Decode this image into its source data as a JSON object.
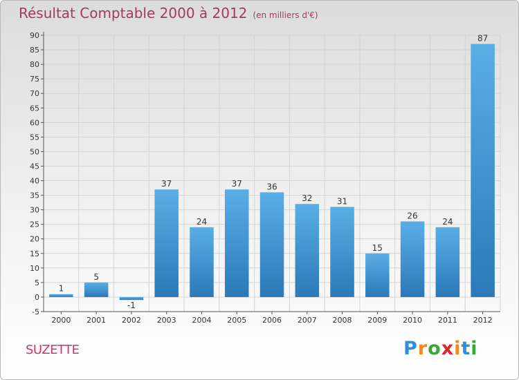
{
  "chart_data": {
    "type": "bar",
    "title": "Résultat Comptable 2000 à 2012",
    "subtitle": "(en milliers d'€)",
    "categories": [
      "2000",
      "2001",
      "2002",
      "2003",
      "2004",
      "2005",
      "2006",
      "2007",
      "2008",
      "2009",
      "2010",
      "2011",
      "2012"
    ],
    "values": [
      1,
      5,
      -1,
      37,
      24,
      37,
      36,
      32,
      31,
      15,
      26,
      24,
      87
    ],
    "ylim": [
      -5,
      90
    ],
    "ytick_step": 5,
    "grid": true,
    "xlabel": "",
    "ylabel": "",
    "colors": {
      "bar_light": "#5aaee6",
      "bar_dark": "#2b79b8",
      "grid": "#d4d4d4",
      "title": "#a23b5a"
    }
  },
  "commune": "SUZETTE",
  "logo": {
    "letters": [
      "P",
      "r",
      "o",
      "x",
      "i",
      "t",
      "i"
    ],
    "colors": [
      "#2f8fd8",
      "#f08a1c",
      "#3aa53a",
      "#d9262a",
      "#f08a1c",
      "#2f8fd8",
      "#3aa53a"
    ]
  }
}
